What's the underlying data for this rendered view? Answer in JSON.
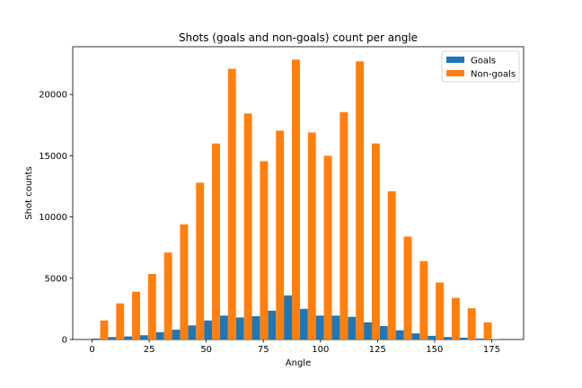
{
  "chart_data": {
    "type": "bar",
    "title": "Shots (goals and non-goals) count per angle",
    "xlabel": "Angle",
    "ylabel": "Shot counts",
    "x": [
      0,
      7,
      14,
      21,
      28,
      35,
      42,
      49,
      56,
      63,
      70,
      77,
      84,
      91,
      98,
      105,
      112,
      119,
      126,
      133,
      140,
      147,
      154,
      161,
      168,
      175
    ],
    "bin_width": 7,
    "xlim": [
      -8.5,
      189
    ],
    "ylim": [
      0,
      23900
    ],
    "xticks": [
      0,
      25,
      50,
      75,
      100,
      125,
      150,
      175
    ],
    "yticks": [
      0,
      5000,
      10000,
      15000,
      20000
    ],
    "series": [
      {
        "name": "Goals",
        "color": "#1f77b4",
        "values": [
          80,
          200,
          250,
          350,
          600,
          800,
          1150,
          1550,
          1950,
          1800,
          1900,
          2350,
          3600,
          2500,
          1950,
          1950,
          1850,
          1400,
          1100,
          750,
          500,
          300,
          200,
          150,
          80,
          30
        ]
      },
      {
        "name": "Non-goals",
        "color": "#ff7f0e",
        "values": [
          1550,
          2950,
          3900,
          5350,
          7100,
          9400,
          12800,
          16000,
          22100,
          18450,
          14550,
          17050,
          22850,
          16900,
          15000,
          18550,
          22700,
          16000,
          12100,
          8400,
          6400,
          4650,
          3400,
          2550,
          1400,
          0
        ]
      }
    ],
    "legend": "top-right",
    "grid": false
  }
}
